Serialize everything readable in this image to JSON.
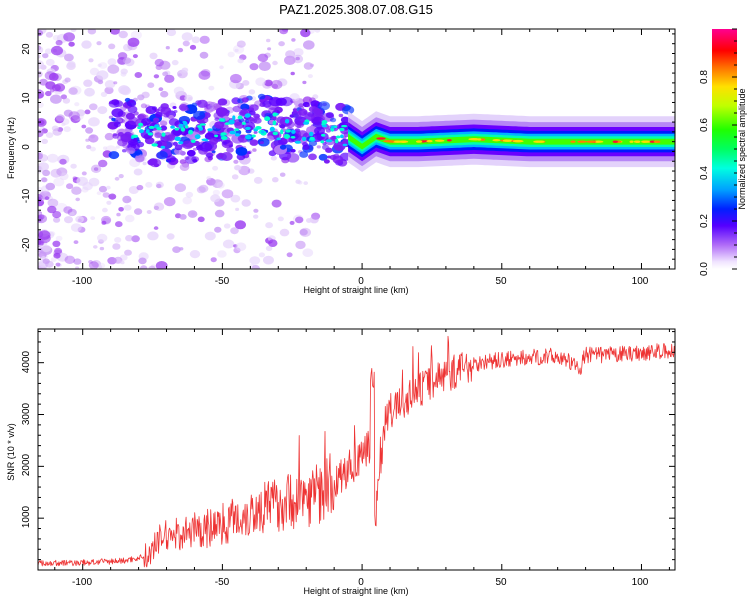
{
  "chart_data": [
    {
      "type": "heatmap",
      "title": "PAZ1.2025.308.07.08.G15",
      "xlabel": "Height of straight line (km)",
      "ylabel": "Frequency (Hz)",
      "xlim": [
        -116,
        112
      ],
      "ylim": [
        -25,
        24
      ],
      "x_ticks": [
        -100,
        -50,
        0,
        50,
        100
      ],
      "y_ticks": [
        -20,
        -10,
        0,
        10,
        20
      ],
      "colorbar": {
        "label": "Normalized spectral amplitude",
        "range": [
          0,
          1
        ],
        "ticks": [
          "0.0",
          "0.2",
          "0.4",
          "0.6",
          "0.8"
        ],
        "colors": [
          "#ffffff",
          "#d9b8f5",
          "#9b3cf0",
          "#6a00ff",
          "#0000ff",
          "#00bfff",
          "#00ffff",
          "#00ff80",
          "#00ff00",
          "#80ff00",
          "#ffff00",
          "#ff8000",
          "#ff0000",
          "#ff00a0"
        ]
      },
      "ridge": {
        "x": [
          -116,
          -100,
          -85,
          -75,
          -60,
          -45,
          -35,
          -25,
          -15,
          -5,
          0,
          5,
          10,
          20,
          40,
          60,
          80,
          100,
          112
        ],
        "frequency": [
          1,
          2,
          4,
          2,
          3,
          3.5,
          5,
          3,
          3,
          2,
          0,
          2,
          1,
          1,
          1.5,
          1,
          1,
          1,
          1
        ]
      }
    },
    {
      "type": "line",
      "xlabel": "Height of straight line (km)",
      "ylabel": "SNR (10 * v/v)",
      "xlim": [
        -116,
        112
      ],
      "ylim": [
        0,
        4650
      ],
      "x_ticks": [
        -100,
        -50,
        0,
        50,
        100
      ],
      "y_ticks": [
        1000,
        2000,
        3000,
        4000
      ],
      "series": [
        {
          "name": "SNR",
          "color": "#ee3333",
          "x": [
            -116,
            -100,
            -85,
            -76,
            -72,
            -65,
            -55,
            -45,
            -35,
            -25,
            -15,
            -10,
            -5,
            0,
            3,
            4,
            5,
            8,
            10,
            15,
            20,
            25,
            30,
            38,
            42,
            50,
            60,
            70,
            78,
            80,
            90,
            100,
            112
          ],
          "y": [
            130,
            140,
            180,
            280,
            650,
            700,
            800,
            1000,
            1200,
            1350,
            1500,
            1650,
            1950,
            2150,
            2400,
            1200,
            1150,
            2800,
            3050,
            3250,
            3450,
            3650,
            3750,
            3950,
            4000,
            4050,
            4100,
            4130,
            3900,
            4150,
            4150,
            4200,
            4220
          ]
        }
      ]
    }
  ]
}
